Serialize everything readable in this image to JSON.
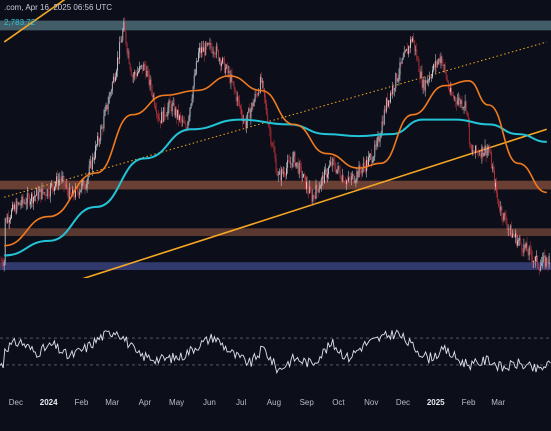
{
  "header": {
    "source_line": ".com, Apr 16, 2025 06:56 UTC",
    "price_label": "2,783.72"
  },
  "colors": {
    "background": "#0c0f1a",
    "candle_up": "#d6d9e0",
    "candle_down": "#c8323a",
    "ema_orange": "#f07a1e",
    "ema_cyan": "#22c4d6",
    "trendline": "#f5a623",
    "resistance_zone": "#6f9ea8",
    "support_zone": "#b86a4c",
    "demand_zone": "#3f4a8a",
    "rsi_line": "#dfe3ec"
  },
  "chart_data": [
    {
      "type": "candlestick",
      "title": "",
      "xlabel": "",
      "ylabel": "",
      "x_tick_labels": [
        "Dec",
        "2024",
        "Feb",
        "Mar",
        "Apr",
        "May",
        "Jun",
        "Jul",
        "Aug",
        "Sep",
        "Oct",
        "Nov",
        "Dec",
        "2025",
        "Feb",
        "Mar"
      ],
      "x_tick_bold": [
        "2024",
        "2025"
      ],
      "ylim": [
        1500,
        4200
      ],
      "close_path": [
        [
          "2023-11-20",
          2000
        ],
        [
          "2023-12-01",
          2150
        ],
        [
          "2023-12-15",
          2250
        ],
        [
          "2024-01-01",
          2320
        ],
        [
          "2024-01-12",
          2450
        ],
        [
          "2024-01-22",
          2250
        ],
        [
          "2024-02-05",
          2400
        ],
        [
          "2024-02-20",
          2950
        ],
        [
          "2024-03-05",
          3600
        ],
        [
          "2024-03-12",
          4000
        ],
        [
          "2024-03-20",
          3500
        ],
        [
          "2024-04-01",
          3600
        ],
        [
          "2024-04-15",
          3050
        ],
        [
          "2024-04-25",
          3200
        ],
        [
          "2024-05-10",
          2950
        ],
        [
          "2024-05-22",
          3750
        ],
        [
          "2024-06-05",
          3800
        ],
        [
          "2024-06-20",
          3500
        ],
        [
          "2024-07-05",
          3000
        ],
        [
          "2024-07-20",
          3450
        ],
        [
          "2024-08-05",
          2450
        ],
        [
          "2024-08-20",
          2650
        ],
        [
          "2024-09-06",
          2250
        ],
        [
          "2024-09-25",
          2600
        ],
        [
          "2024-10-10",
          2400
        ],
        [
          "2024-10-28",
          2600
        ],
        [
          "2024-11-06",
          2750
        ],
        [
          "2024-11-15",
          3200
        ],
        [
          "2024-12-01",
          3650
        ],
        [
          "2024-12-10",
          3900
        ],
        [
          "2024-12-20",
          3400
        ],
        [
          "2025-01-06",
          3700
        ],
        [
          "2025-01-15",
          3300
        ],
        [
          "2025-01-30",
          3200
        ],
        [
          "2025-02-03",
          2700
        ],
        [
          "2025-02-20",
          2750
        ],
        [
          "2025-03-01",
          2200
        ],
        [
          "2025-03-12",
          1900
        ],
        [
          "2025-04-09",
          1550
        ],
        [
          "2025-04-16",
          1600
        ]
      ],
      "ema_50": [
        [
          "2023-11-20",
          1750
        ],
        [
          "2024-01-01",
          2050
        ],
        [
          "2024-02-15",
          2500
        ],
        [
          "2024-03-20",
          3100
        ],
        [
          "2024-04-20",
          3300
        ],
        [
          "2024-05-20",
          3350
        ],
        [
          "2024-06-20",
          3500
        ],
        [
          "2024-07-20",
          3350
        ],
        [
          "2024-08-20",
          3000
        ],
        [
          "2024-09-20",
          2700
        ],
        [
          "2024-10-20",
          2550
        ],
        [
          "2024-11-10",
          2600
        ],
        [
          "2024-12-10",
          3100
        ],
        [
          "2025-01-10",
          3400
        ],
        [
          "2025-02-01",
          3450
        ],
        [
          "2025-02-20",
          3200
        ],
        [
          "2025-03-20",
          2600
        ],
        [
          "2025-04-16",
          2300
        ]
      ],
      "ema_200": [
        [
          "2023-11-20",
          1650
        ],
        [
          "2024-01-01",
          1800
        ],
        [
          "2024-02-15",
          2150
        ],
        [
          "2024-04-01",
          2650
        ],
        [
          "2024-05-15",
          2950
        ],
        [
          "2024-06-30",
          3050
        ],
        [
          "2024-08-15",
          3000
        ],
        [
          "2024-09-20",
          2900
        ],
        [
          "2024-10-20",
          2880
        ],
        [
          "2024-11-20",
          2900
        ],
        [
          "2024-12-20",
          3050
        ],
        [
          "2025-01-20",
          3050
        ],
        [
          "2025-02-20",
          3000
        ],
        [
          "2025-03-20",
          2900
        ],
        [
          "2025-04-16",
          2820
        ]
      ],
      "trend_channel": {
        "upper": [
          [
            "2023-11-20",
            3850
          ],
          [
            "2024-08-01",
            5800
          ]
        ],
        "lower": [
          [
            "2023-11-20",
            1150
          ],
          [
            "2025-04-16",
            2950
          ]
        ],
        "mid_dotted": [
          [
            "2023-11-20",
            2250
          ],
          [
            "2025-04-16",
            3850
          ]
        ]
      },
      "zones": {
        "resistance": [
          3970,
          4070
        ],
        "support_upper": [
          2330,
          2420
        ],
        "support_lower": [
          1850,
          1930
        ],
        "demand": [
          1500,
          1580
        ]
      }
    },
    {
      "type": "line",
      "title": "",
      "series": [
        {
          "values": [
            [
              "2023-11-20",
              55
            ],
            [
              "2023-12-05",
              65
            ],
            [
              "2023-12-20",
              48
            ],
            [
              "2024-01-05",
              60
            ],
            [
              "2024-01-20",
              42
            ],
            [
              "2024-02-05",
              55
            ],
            [
              "2024-02-20",
              72
            ],
            [
              "2024-03-05",
              82
            ],
            [
              "2024-03-15",
              65
            ],
            [
              "2024-03-25",
              45
            ],
            [
              "2024-04-15",
              38
            ],
            [
              "2024-05-05",
              42
            ],
            [
              "2024-05-22",
              60
            ],
            [
              "2024-06-05",
              72
            ],
            [
              "2024-06-25",
              44
            ],
            [
              "2024-07-10",
              32
            ],
            [
              "2024-07-22",
              55
            ],
            [
              "2024-08-05",
              22
            ],
            [
              "2024-08-20",
              40
            ],
            [
              "2024-09-06",
              32
            ],
            [
              "2024-09-25",
              62
            ],
            [
              "2024-10-10",
              40
            ],
            [
              "2024-10-25",
              60
            ],
            [
              "2024-11-10",
              70
            ],
            [
              "2024-11-25",
              78
            ],
            [
              "2024-12-10",
              58
            ],
            [
              "2024-12-25",
              40
            ],
            [
              "2025-01-10",
              52
            ],
            [
              "2025-01-25",
              35
            ],
            [
              "2025-02-05",
              30
            ],
            [
              "2025-02-20",
              38
            ],
            [
              "2025-03-05",
              25
            ],
            [
              "2025-03-20",
              32
            ],
            [
              "2025-04-08",
              22
            ],
            [
              "2025-04-16",
              30
            ]
          ]
        }
      ],
      "ylim": [
        0,
        100
      ],
      "levels": [
        70,
        30
      ]
    }
  ]
}
